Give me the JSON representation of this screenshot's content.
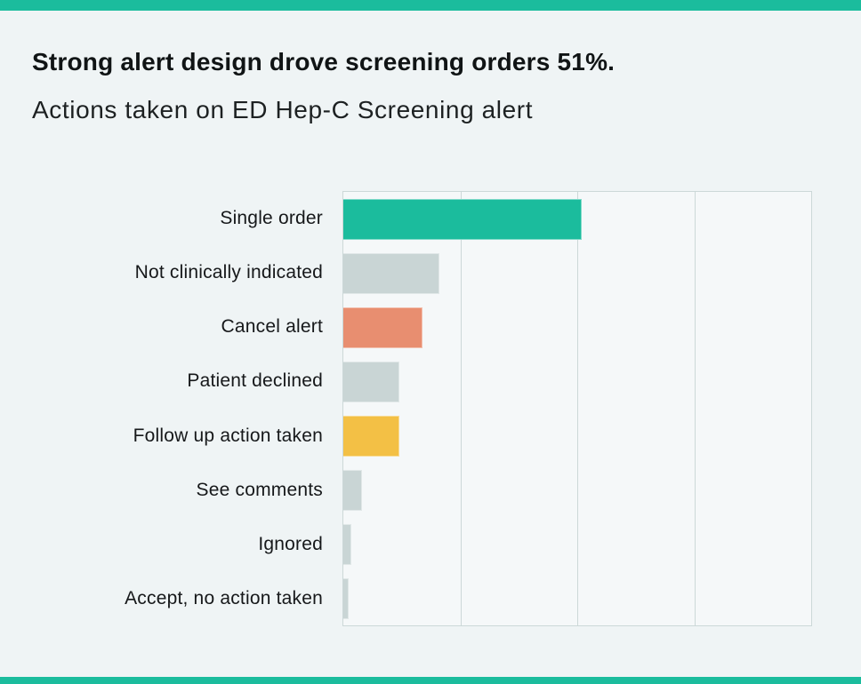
{
  "page": {
    "accent_color": "#1bbc9d",
    "background_color": "#eff4f5"
  },
  "header": {
    "title": "Strong alert design drove screening orders 51%.",
    "subtitle": "Actions taken on ED Hep-C Screening alert"
  },
  "chart_data": {
    "type": "bar",
    "orientation": "horizontal",
    "title": "Strong alert design drove screening orders 51%.",
    "subtitle": "Actions taken on ED Hep-C Screening alert",
    "categories": [
      "Single order",
      "Not clinically indicated",
      "Cancel alert",
      "Patient declined",
      "Follow up action taken",
      "See comments",
      "Ignored",
      "Accept, no action taken"
    ],
    "values": [
      51,
      20.5,
      17,
      12,
      12,
      4,
      1.7,
      1.1
    ],
    "value_unit": "%",
    "xlabel": "",
    "ylabel": "",
    "xlim": [
      0,
      100
    ],
    "x_gridline_interval": 25,
    "grid": true,
    "legend": false,
    "axis_tick_labels_visible": false,
    "bar_colors": [
      "#1bbc9d",
      "#c9d5d5",
      "#e88e70",
      "#c9d5d5",
      "#f3c045",
      "#c9d5d5",
      "#c9d5d5",
      "#c9d5d5"
    ],
    "plot_background": "#f5f8f9",
    "gridline_color": "#ccd8d8"
  }
}
